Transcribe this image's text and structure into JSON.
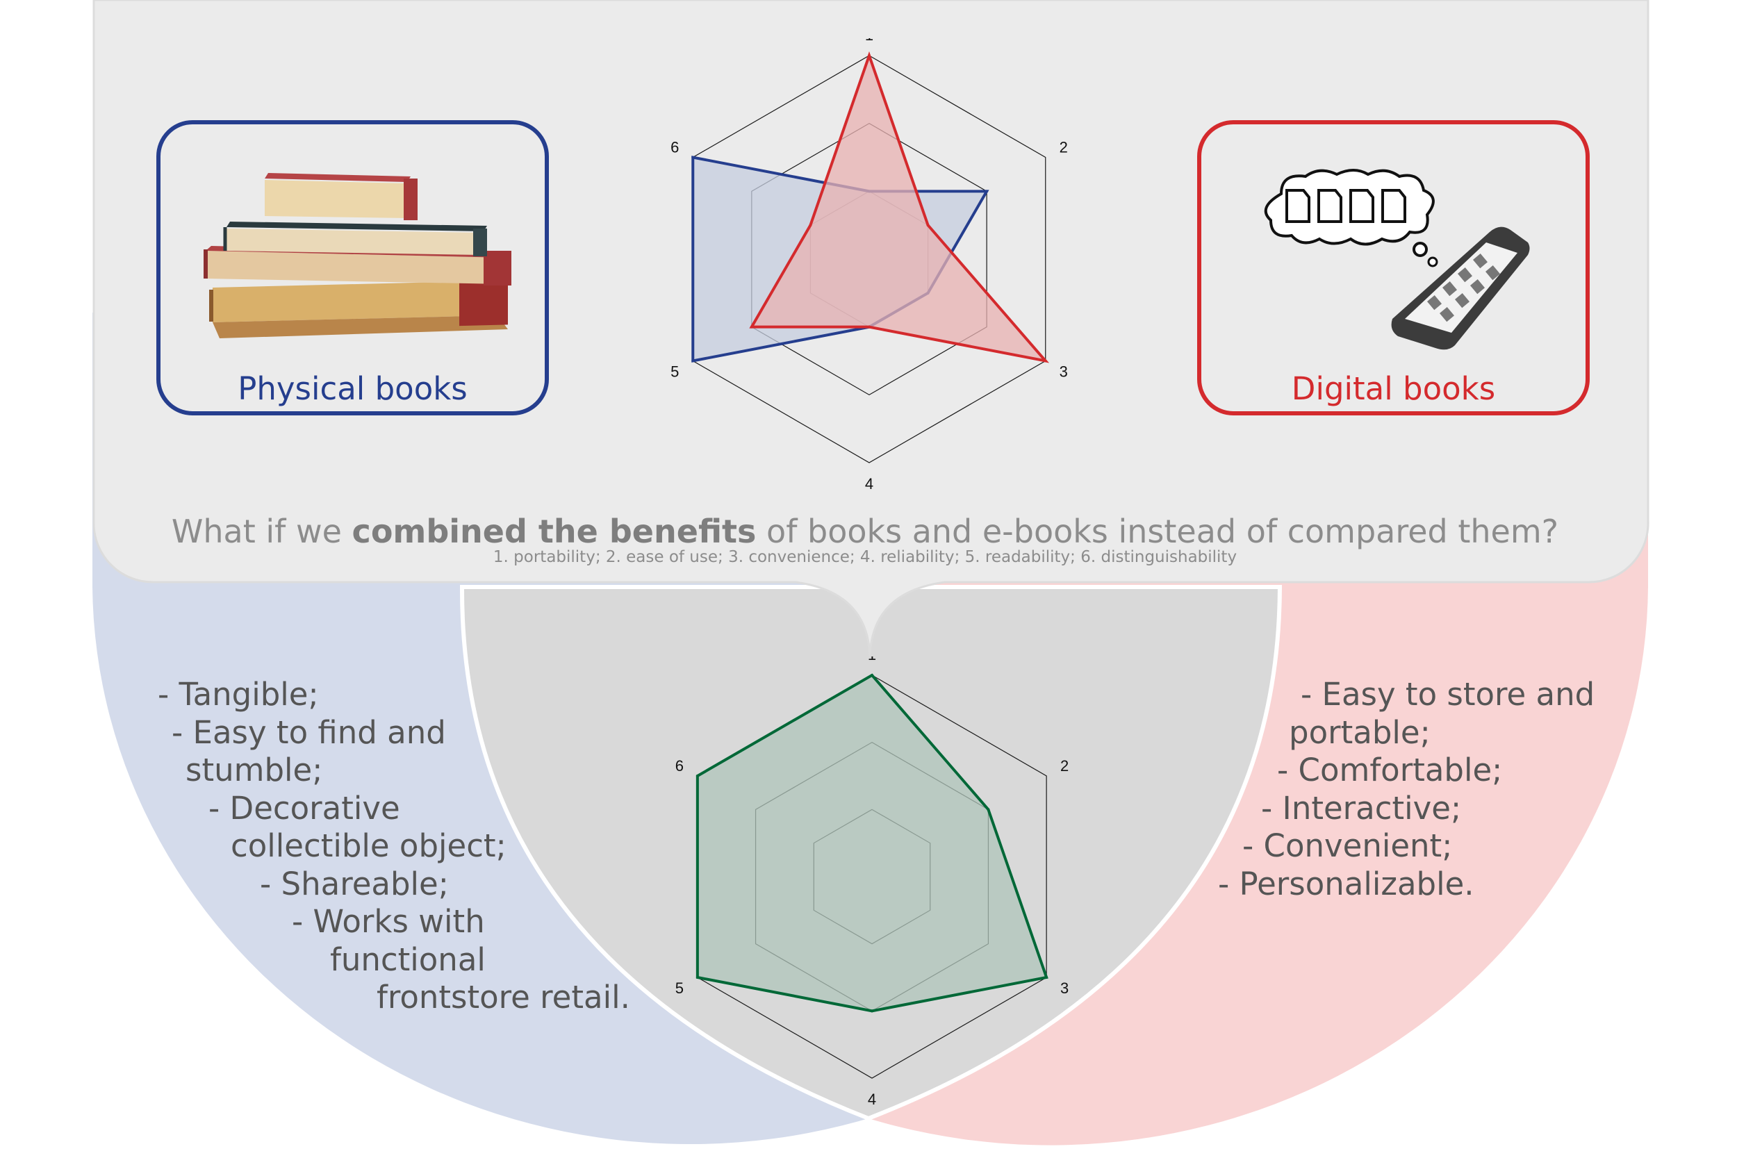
{
  "background": {
    "top_panel_color": "#ebebeb",
    "center_lens_color": "#d9d9d9",
    "left_lobe_color": "#d4dbeb",
    "right_lobe_color": "#f9d4d4"
  },
  "physical_card": {
    "label": "Physical books",
    "image_icon": "stacked-books-illustration",
    "color": "#253e8e"
  },
  "digital_card": {
    "label": "Digital books",
    "image_icon": "ereader-with-document-thought-bubble",
    "color": "#d42a2d"
  },
  "question": {
    "prefix": "What if we ",
    "bold": "combined the benefits",
    "suffix": " of books and e-books instead of compared them?"
  },
  "criteria_note": "1. portability; 2. ease of use; 3. convenience; 4. reliability; 5. readability; 6. distinguishability",
  "physical_benefits": [
    "- Tangible;",
    "- Easy to find and",
    "stumble;",
    "- Decorative",
    "collectible object;",
    "- Shareable;",
    "- Works with",
    "functional",
    "frontstore retail."
  ],
  "digital_benefits": [
    "- Easy to store and",
    "portable;",
    "- Comfortable;",
    "- Interactive;",
    "- Convenient;",
    "- Personalizable."
  ],
  "chart_data": [
    {
      "type": "radar",
      "axes": [
        "1",
        "2",
        "3",
        "4",
        "5",
        "6"
      ],
      "range": [
        0,
        3
      ],
      "rings": 3,
      "series": [
        {
          "values": [
            1,
            2,
            1,
            1,
            3,
            3
          ],
          "color": "#253e8e",
          "fill": "#c6cedf"
        },
        {
          "values": [
            3,
            1,
            3,
            1,
            2,
            1
          ],
          "color": "#d42a2d",
          "fill": "#e8b1b1"
        }
      ]
    },
    {
      "type": "radar",
      "axes": [
        "1",
        "2",
        "3",
        "4",
        "5",
        "6"
      ],
      "range": [
        0,
        3
      ],
      "rings": 3,
      "series": [
        {
          "values": [
            3,
            2,
            3,
            2,
            3,
            3
          ],
          "color": "#006837",
          "fill": "#afc4b9"
        }
      ]
    }
  ]
}
